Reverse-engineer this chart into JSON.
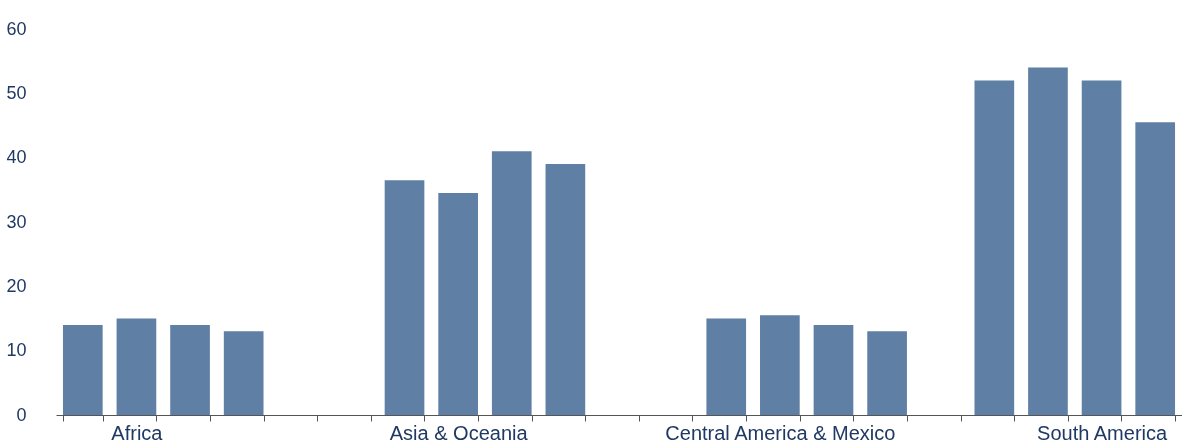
{
  "chart_data": {
    "type": "bar",
    "categories": [
      null,
      "Africa",
      null,
      null,
      null,
      null,
      null,
      "Asia & Oceania",
      null,
      null,
      null,
      null,
      null,
      "Central America & Mexico",
      null,
      null,
      null,
      null,
      null,
      "South America",
      null
    ],
    "values": [
      14,
      15,
      14,
      13,
      null,
      null,
      36.5,
      34.5,
      41,
      39,
      null,
      null,
      15,
      15.5,
      14,
      13,
      null,
      52,
      54,
      52,
      45.5
    ],
    "color": "#5f7fa5",
    "ylim": [
      0,
      60
    ],
    "yticks": [
      0,
      10,
      20,
      30,
      40,
      50,
      60
    ],
    "grid": false
  }
}
